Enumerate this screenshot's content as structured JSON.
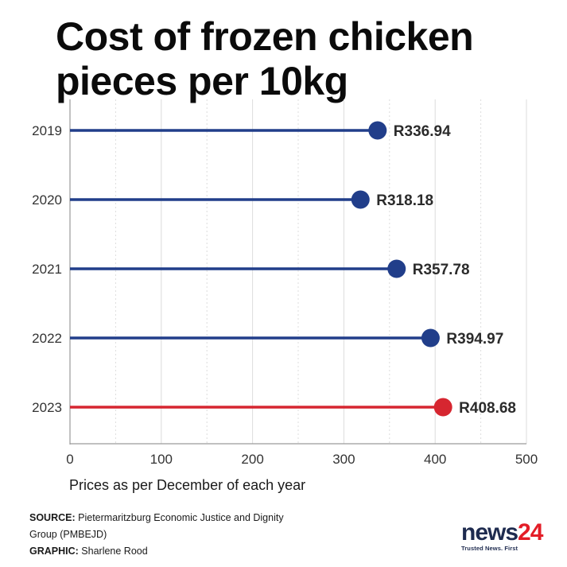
{
  "chart_data": {
    "type": "lollipop",
    "title": "Cost of frozen chicken pieces per 10kg",
    "categories": [
      "2019",
      "2020",
      "2021",
      "2022",
      "2023"
    ],
    "values": [
      336.94,
      318.18,
      357.78,
      394.97,
      408.68
    ],
    "value_labels": [
      "R336.94",
      "R318.18",
      "R357.78",
      "R394.97",
      "R408.68"
    ],
    "xlim": [
      0,
      500
    ],
    "xticks": [
      0,
      100,
      200,
      300,
      400,
      500
    ],
    "xlabel": "Prices as per December of each year",
    "orientation": "horizontal",
    "grid": true,
    "colors": {
      "default": "#213e8a",
      "highlight": "#d62630",
      "highlight_category": "2023"
    }
  },
  "footer": {
    "source_label": "SOURCE:",
    "source_text": " Pietermaritzburg Economic Justice and Dignity Group (PMBEJD)",
    "graphic_label": "GRAPHIC:",
    "graphic_text": " Sharlene Rood"
  },
  "logo": {
    "name": "news24",
    "tagline": "Trusted News. First"
  }
}
